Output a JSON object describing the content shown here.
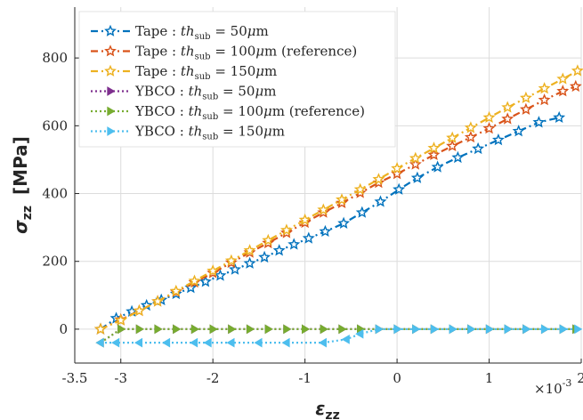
{
  "chart_data": {
    "type": "line",
    "xlabel": "ε",
    "xlabel_sub": "zz",
    "ylabel": "σ",
    "ylabel_sub": "zz",
    "ylabel_unit": "[MPa]",
    "x_exponent_label": "×10",
    "x_exponent_power": "-3",
    "xlim": [
      -3.5,
      2
    ],
    "ylim": [
      -100,
      950
    ],
    "x_ticks": [
      -3.5,
      -3,
      -2,
      -1,
      0,
      1,
      2
    ],
    "x_tick_labels": [
      "-3.5",
      "-3",
      "-2",
      "-1",
      "0",
      "1",
      "2"
    ],
    "y_ticks": [
      0,
      200,
      400,
      600,
      800
    ],
    "y_tick_labels": [
      "0",
      "200",
      "400",
      "600",
      "800"
    ],
    "grid": true,
    "legend_position": "top-left",
    "series": [
      {
        "name": "Tape : th_sub = 50μm",
        "legend_parts": [
          "Tape : ",
          "th",
          "sub",
          " = 50",
          "μ",
          "m",
          ""
        ],
        "color": "#0072BD",
        "line": "dashdot",
        "marker": "star",
        "points": [
          [
            -3.22,
            0
          ],
          [
            -3.05,
            32
          ],
          [
            -2.88,
            52
          ],
          [
            -2.72,
            70
          ],
          [
            -2.56,
            86
          ],
          [
            -2.4,
            104
          ],
          [
            -2.24,
            122
          ],
          [
            -2.08,
            140
          ],
          [
            -1.92,
            158
          ],
          [
            -1.76,
            176
          ],
          [
            -1.6,
            194
          ],
          [
            -1.44,
            212
          ],
          [
            -1.28,
            232
          ],
          [
            -1.12,
            250
          ],
          [
            -0.96,
            268
          ],
          [
            -0.78,
            288
          ],
          [
            -0.58,
            312
          ],
          [
            -0.38,
            344
          ],
          [
            -0.18,
            376
          ],
          [
            0.02,
            412
          ],
          [
            0.22,
            446
          ],
          [
            0.44,
            478
          ],
          [
            0.66,
            506
          ],
          [
            0.88,
            532
          ],
          [
            1.1,
            558
          ],
          [
            1.32,
            584
          ],
          [
            1.54,
            610
          ],
          [
            1.76,
            624
          ]
        ]
      },
      {
        "name": "Tape : th_sub = 100μm (reference)",
        "legend_parts": [
          "Tape : ",
          "th",
          "sub",
          " = 100",
          "μ",
          "m",
          " (reference)"
        ],
        "color": "#D95319",
        "line": "dashdot",
        "marker": "star",
        "points": [
          [
            -3.22,
            0
          ],
          [
            -3.0,
            28
          ],
          [
            -2.8,
            54
          ],
          [
            -2.6,
            82
          ],
          [
            -2.4,
            110
          ],
          [
            -2.2,
            138
          ],
          [
            -2.0,
            166
          ],
          [
            -1.8,
            196
          ],
          [
            -1.6,
            226
          ],
          [
            -1.4,
            254
          ],
          [
            -1.2,
            284
          ],
          [
            -1.0,
            314
          ],
          [
            -0.8,
            344
          ],
          [
            -0.6,
            372
          ],
          [
            -0.4,
            402
          ],
          [
            -0.2,
            432
          ],
          [
            0.0,
            458
          ],
          [
            0.2,
            486
          ],
          [
            0.4,
            514
          ],
          [
            0.6,
            540
          ],
          [
            0.8,
            566
          ],
          [
            1.0,
            592
          ],
          [
            1.2,
            620
          ],
          [
            1.4,
            648
          ],
          [
            1.6,
            676
          ],
          [
            1.8,
            702
          ],
          [
            1.94,
            716
          ]
        ]
      },
      {
        "name": "Tape : th_sub = 150μm",
        "legend_parts": [
          "Tape : ",
          "th",
          "sub",
          " = 150",
          "μ",
          "m",
          ""
        ],
        "color": "#EDB120",
        "line": "dashdot",
        "marker": "star",
        "points": [
          [
            -3.22,
            0
          ],
          [
            -3.0,
            26
          ],
          [
            -2.8,
            54
          ],
          [
            -2.6,
            82
          ],
          [
            -2.4,
            112
          ],
          [
            -2.2,
            142
          ],
          [
            -2.0,
            172
          ],
          [
            -1.8,
            202
          ],
          [
            -1.6,
            232
          ],
          [
            -1.4,
            262
          ],
          [
            -1.2,
            292
          ],
          [
            -1.0,
            322
          ],
          [
            -0.8,
            352
          ],
          [
            -0.6,
            382
          ],
          [
            -0.4,
            412
          ],
          [
            -0.2,
            442
          ],
          [
            0.0,
            474
          ],
          [
            0.2,
            504
          ],
          [
            0.4,
            534
          ],
          [
            0.6,
            564
          ],
          [
            0.8,
            594
          ],
          [
            1.0,
            624
          ],
          [
            1.2,
            654
          ],
          [
            1.4,
            682
          ],
          [
            1.6,
            710
          ],
          [
            1.8,
            738
          ],
          [
            1.96,
            762
          ]
        ]
      },
      {
        "name": "YBCO : th_sub = 50μm",
        "legend_parts": [
          "YBCO : ",
          "th",
          "sub",
          " = 50",
          "μ",
          "m",
          ""
        ],
        "color": "#7E2F8E",
        "line": "dotted",
        "marker": "triangle",
        "points": [
          [
            -3.22,
            -40
          ],
          [
            -3.0,
            0
          ],
          [
            -2.8,
            0
          ],
          [
            -2.6,
            0
          ],
          [
            -2.4,
            0
          ],
          [
            -2.2,
            0
          ],
          [
            -2.0,
            0
          ],
          [
            -1.8,
            0
          ],
          [
            -1.6,
            0
          ],
          [
            -1.4,
            0
          ],
          [
            -1.2,
            0
          ],
          [
            -1.0,
            0
          ],
          [
            -0.8,
            0
          ],
          [
            -0.6,
            0
          ],
          [
            -0.4,
            0
          ],
          [
            -0.2,
            0
          ],
          [
            0.0,
            0
          ],
          [
            0.2,
            0
          ],
          [
            0.4,
            0
          ],
          [
            0.6,
            0
          ],
          [
            0.8,
            0
          ],
          [
            1.0,
            0
          ],
          [
            1.2,
            0
          ],
          [
            1.4,
            0
          ],
          [
            1.6,
            0
          ],
          [
            1.8,
            0
          ],
          [
            1.94,
            0
          ]
        ]
      },
      {
        "name": "YBCO : th_sub = 100μm (reference)",
        "legend_parts": [
          "YBCO : ",
          "th",
          "sub",
          " = 100",
          "μ",
          "m",
          " (reference)"
        ],
        "color": "#77AC30",
        "line": "dotted",
        "marker": "triangle",
        "points": [
          [
            -3.22,
            -40
          ],
          [
            -3.0,
            0
          ],
          [
            -2.8,
            0
          ],
          [
            -2.6,
            0
          ],
          [
            -2.4,
            0
          ],
          [
            -2.2,
            0
          ],
          [
            -2.0,
            0
          ],
          [
            -1.8,
            0
          ],
          [
            -1.6,
            0
          ],
          [
            -1.4,
            0
          ],
          [
            -1.2,
            0
          ],
          [
            -1.0,
            0
          ],
          [
            -0.8,
            0
          ],
          [
            -0.6,
            0
          ],
          [
            -0.4,
            0
          ],
          [
            -0.2,
            0
          ],
          [
            0.0,
            0
          ],
          [
            0.2,
            0
          ],
          [
            0.4,
            0
          ],
          [
            0.6,
            0
          ],
          [
            0.8,
            0
          ],
          [
            1.0,
            0
          ],
          [
            1.2,
            0
          ],
          [
            1.4,
            0
          ],
          [
            1.6,
            0
          ],
          [
            1.8,
            0
          ],
          [
            1.94,
            0
          ]
        ]
      },
      {
        "name": "YBCO : th_sub = 150μm",
        "legend_parts": [
          "YBCO : ",
          "th",
          "sub",
          " = 150",
          "μ",
          "m",
          ""
        ],
        "color": "#4DBEEE",
        "line": "dotted",
        "marker": "triangle",
        "points": [
          [
            -3.22,
            -40
          ],
          [
            -3.05,
            -40
          ],
          [
            -2.8,
            -40
          ],
          [
            -2.5,
            -40
          ],
          [
            -2.2,
            -40
          ],
          [
            -2.05,
            -40
          ],
          [
            -1.8,
            -40
          ],
          [
            -1.5,
            -40
          ],
          [
            -1.2,
            -40
          ],
          [
            -0.8,
            -40
          ],
          [
            -0.55,
            -30
          ],
          [
            -0.4,
            -14
          ],
          [
            -0.2,
            0
          ],
          [
            0.0,
            0
          ],
          [
            0.2,
            0
          ],
          [
            0.4,
            0
          ],
          [
            0.6,
            0
          ],
          [
            0.8,
            0
          ],
          [
            1.0,
            0
          ],
          [
            1.2,
            0
          ],
          [
            1.4,
            0
          ],
          [
            1.6,
            0
          ],
          [
            1.8,
            0
          ],
          [
            1.96,
            0
          ]
        ]
      }
    ]
  }
}
